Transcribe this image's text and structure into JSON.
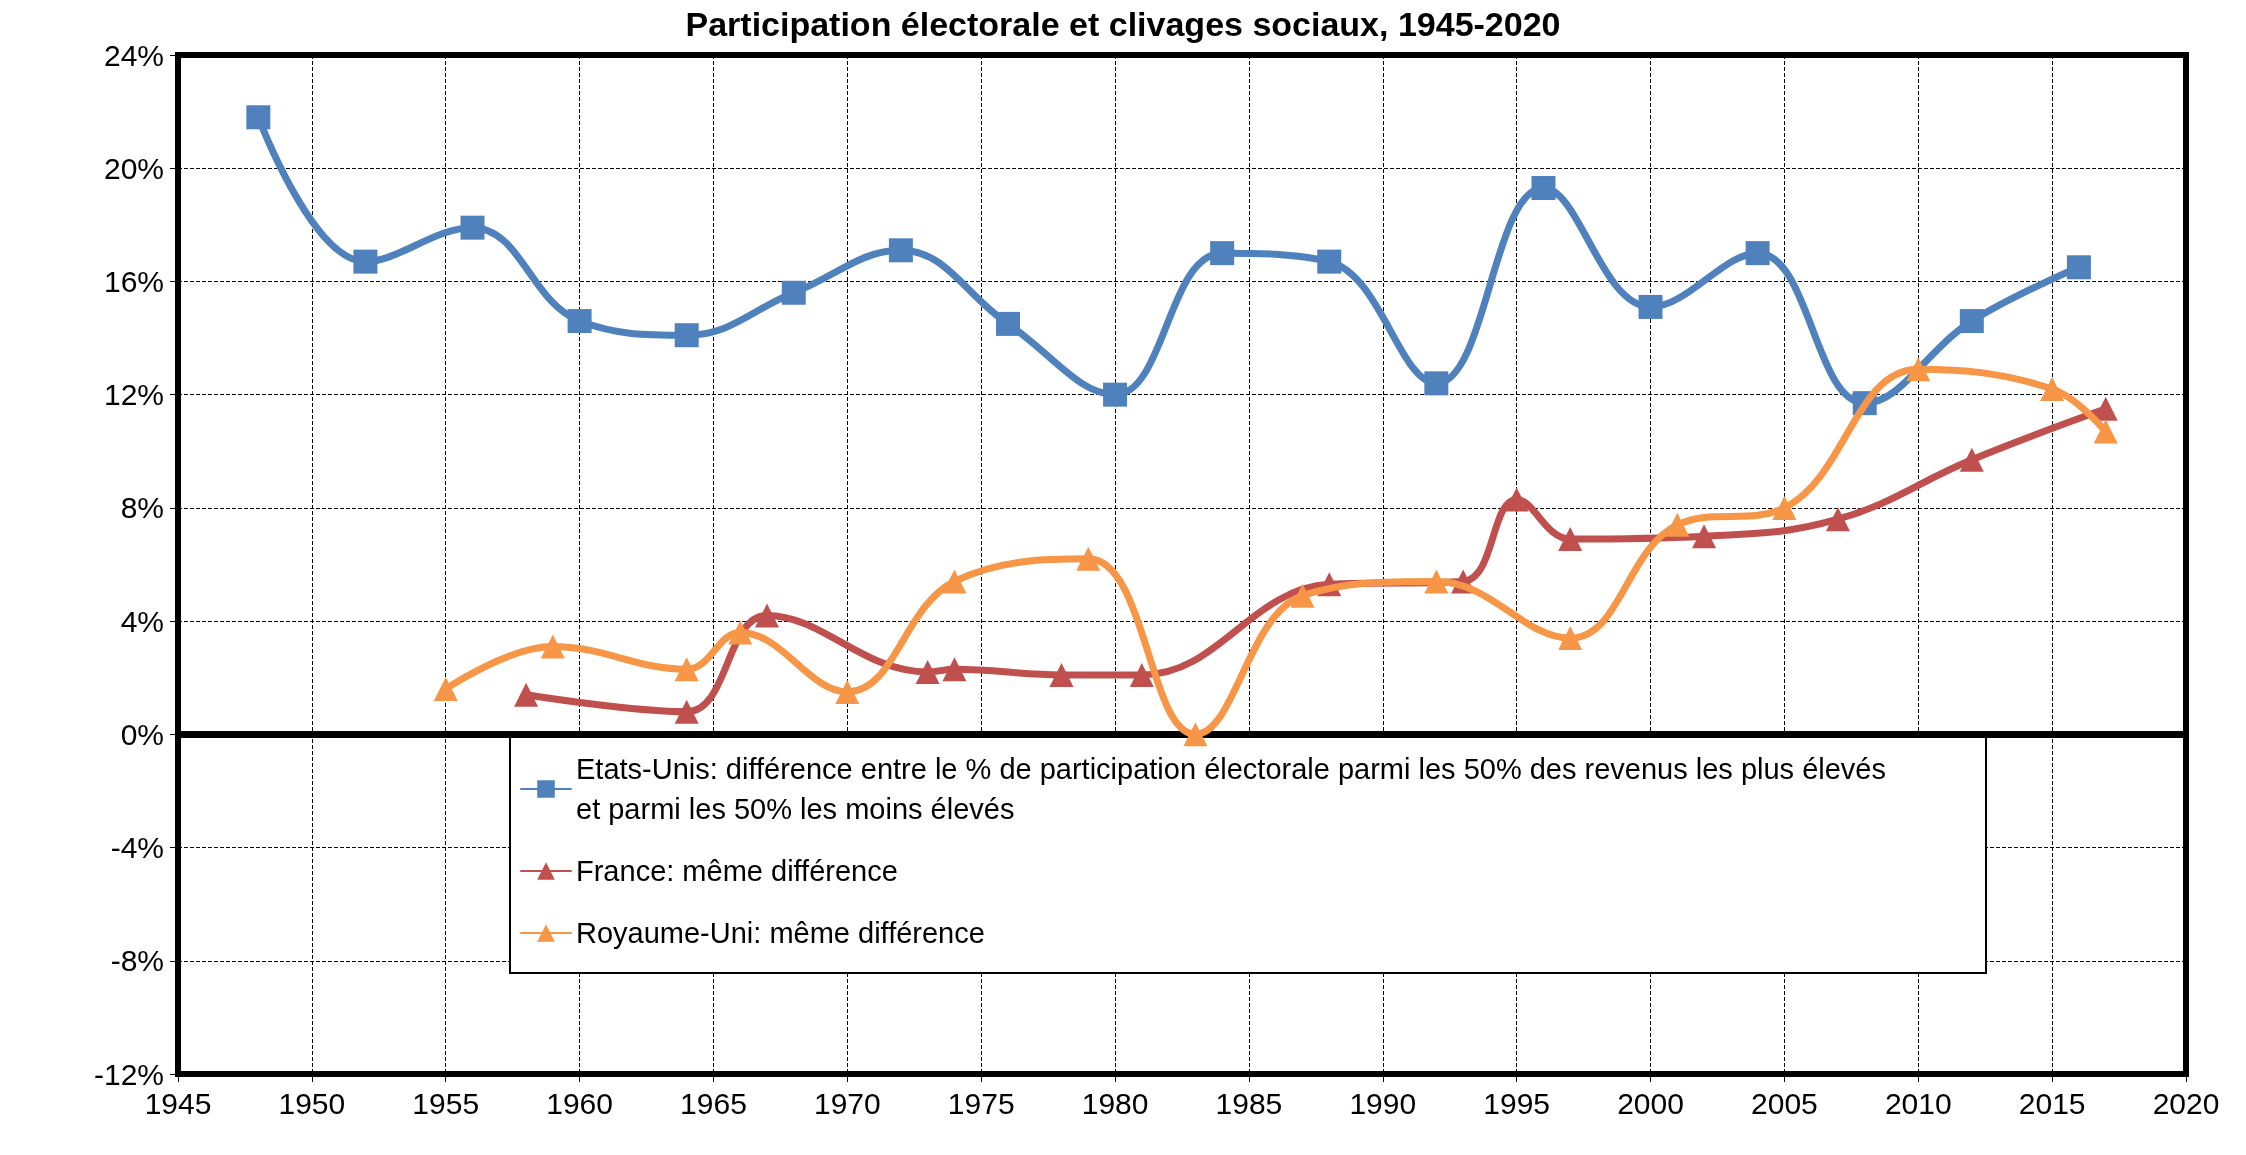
{
  "chart_data": {
    "type": "line",
    "title": "Participation électorale et clivages sociaux, 1945-2020",
    "xlim": [
      1945,
      2020
    ],
    "xticks": [
      1945,
      1950,
      1955,
      1960,
      1965,
      1970,
      1975,
      1980,
      1985,
      1990,
      1995,
      2000,
      2005,
      2010,
      2015,
      2020
    ],
    "ylim": [
      -12,
      24
    ],
    "yticks": [
      {
        "value": -12,
        "label": "-12%"
      },
      {
        "value": -8,
        "label": "-8%"
      },
      {
        "value": -4,
        "label": "-4%"
      },
      {
        "value": 0,
        "label": "0%"
      },
      {
        "value": 4,
        "label": "4%"
      },
      {
        "value": 8,
        "label": "8%"
      },
      {
        "value": 12,
        "label": "12%"
      },
      {
        "value": 16,
        "label": "16%"
      },
      {
        "value": 20,
        "label": "20%"
      },
      {
        "value": 24,
        "label": "24%"
      }
    ],
    "grid": true,
    "legend": "bottom",
    "line_style": "solid",
    "ref_lines": [
      {
        "axis": "y",
        "value": 0,
        "color": "#000000"
      }
    ],
    "series": [
      {
        "name": "Etats-Unis: différence entre le % de participation électorale parmi les 50% des revenus les plus élevés et parmi les 50% les moins élevés",
        "color": "#4f81bd",
        "marker": "square",
        "x": [
          1948,
          1952,
          1956,
          1960,
          1964,
          1968,
          1972,
          1976,
          1980,
          1984,
          1988,
          1992,
          1996,
          2000,
          2004,
          2008,
          2012,
          2016
        ],
        "values": [
          21.8,
          16.7,
          17.9,
          14.6,
          14.1,
          15.6,
          17.1,
          14.5,
          12.0,
          17.0,
          16.7,
          12.4,
          19.3,
          15.1,
          17.0,
          11.7,
          14.6,
          16.5
        ]
      },
      {
        "name": "France: même différence",
        "color": "#c0504d",
        "marker": "triangle",
        "x": [
          1958,
          1964,
          1967,
          1973,
          1974,
          1978,
          1981,
          1988,
          1993,
          1995,
          1997,
          2002,
          2007,
          2012,
          2017
        ],
        "values": [
          1.4,
          0.8,
          4.2,
          2.2,
          2.3,
          2.1,
          2.1,
          5.3,
          5.4,
          8.3,
          6.9,
          7.0,
          7.6,
          9.7,
          11.5
        ]
      },
      {
        "name": "Royaume-Uni: même différence",
        "color": "#f79646",
        "marker": "triangle",
        "x": [
          1955,
          1959,
          1964,
          1966,
          1970,
          1974,
          1979,
          1983,
          1987,
          1992,
          1997,
          2001,
          2005,
          2010,
          2015,
          2017
        ],
        "values": [
          1.6,
          3.1,
          2.3,
          3.6,
          1.5,
          5.4,
          6.2,
          0.0,
          4.9,
          5.4,
          3.4,
          7.4,
          8.0,
          12.9,
          12.2,
          10.7
        ]
      }
    ]
  }
}
